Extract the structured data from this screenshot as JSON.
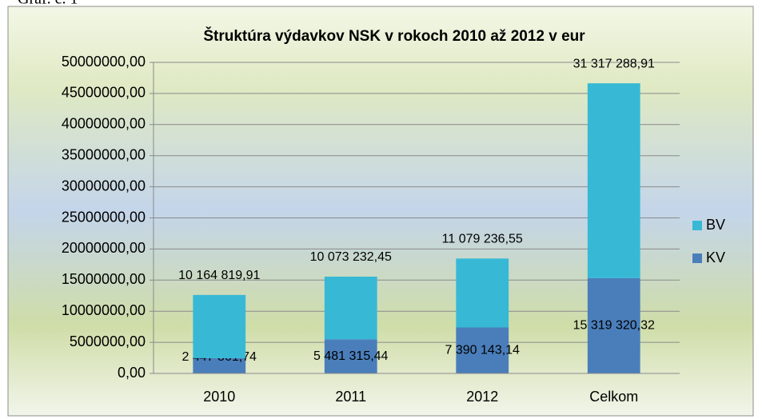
{
  "caption": "Graf. č. 1",
  "chart_data": {
    "type": "stacked_bar",
    "title": "Štruktúra výdavkov NSK  v rokoch 2010 až 2012 v eur",
    "categories": [
      "2010",
      "2011",
      "2012",
      "Celkom"
    ],
    "series": [
      {
        "name": "KV",
        "color": "#4a7ebb",
        "values": [
          2447861.74,
          5481315.44,
          7390143.14,
          15319320.32
        ],
        "value_labels": [
          "2 447 861,74",
          "5 481 315,44",
          "7 390 143,14",
          "15 319 320,32"
        ]
      },
      {
        "name": "BV",
        "color": "#37b9d6",
        "values": [
          10164819.91,
          10073232.45,
          11079236.55,
          31317288.91
        ],
        "value_labels": [
          "10 164 819,91",
          "10 073 232,45",
          "11 079 236,55",
          "31 317 288,91"
        ]
      }
    ],
    "ylim": [
      0,
      50000000
    ],
    "yticks": [
      {
        "value": 0,
        "label": "0,00"
      },
      {
        "value": 5000000,
        "label": "5000000,00"
      },
      {
        "value": 10000000,
        "label": "10000000,00"
      },
      {
        "value": 15000000,
        "label": "15000000,00"
      },
      {
        "value": 20000000,
        "label": "20000000,00"
      },
      {
        "value": 25000000,
        "label": "25000000,00"
      },
      {
        "value": 30000000,
        "label": "30000000,00"
      },
      {
        "value": 35000000,
        "label": "35000000,00"
      },
      {
        "value": 40000000,
        "label": "40000000,00"
      },
      {
        "value": 45000000,
        "label": "45000000,00"
      },
      {
        "value": 50000000,
        "label": "50000000,00"
      }
    ],
    "grid": true,
    "legend": "right"
  }
}
